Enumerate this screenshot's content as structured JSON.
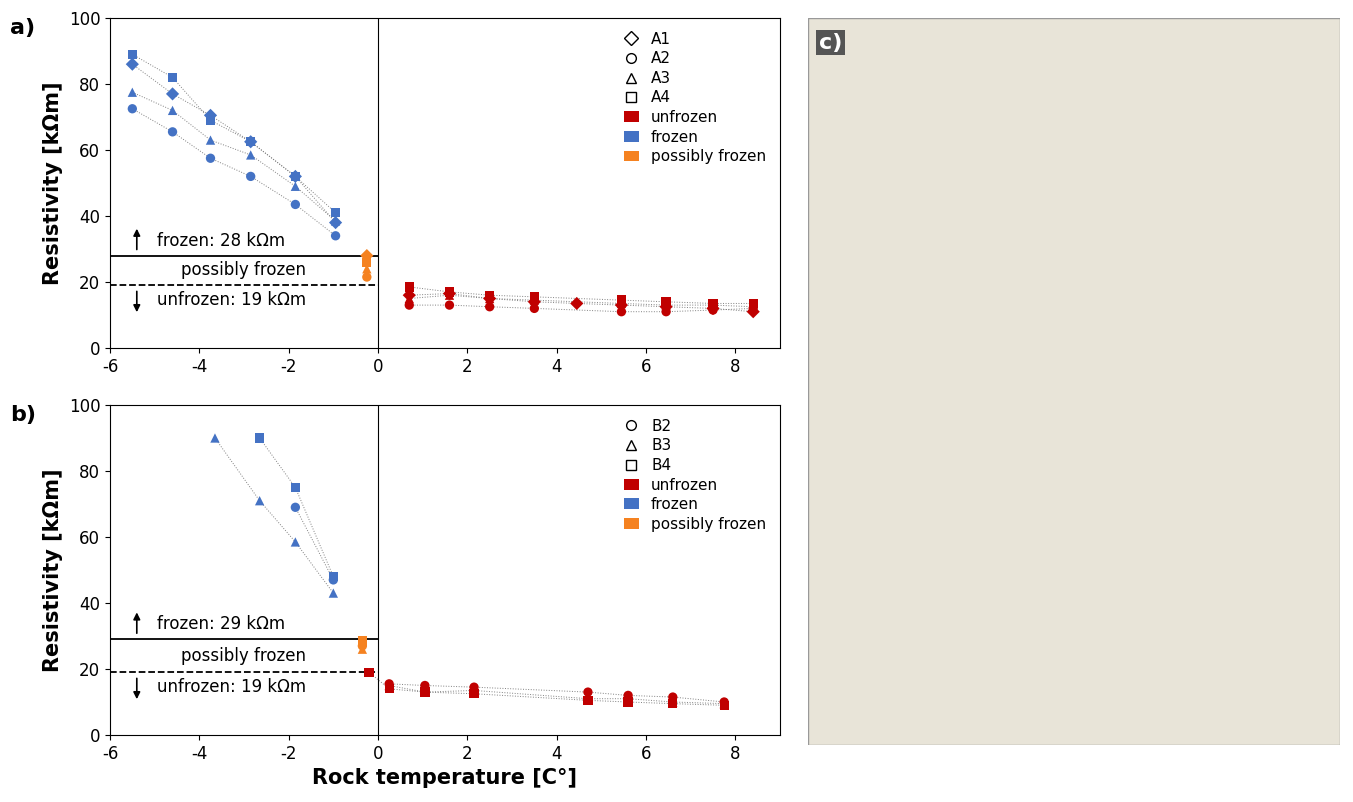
{
  "chart_data": [
    {
      "type": "scatter",
      "panel_label": "a)",
      "y_label": "Resistivity [kΩm]",
      "xlim": [
        -6,
        9
      ],
      "xticks": [
        -6,
        -4,
        -2,
        0,
        2,
        4,
        6,
        8
      ],
      "ylim": [
        0,
        100
      ],
      "yticks": [
        0,
        20,
        40,
        60,
        80,
        100
      ],
      "legend": "upper right",
      "vline": 0,
      "frozen_threshold": {
        "value": 28,
        "label": "frozen: 28 kΩm"
      },
      "unfrozen_threshold": {
        "value": 19,
        "label": "unfrozen: 19 kΩm"
      },
      "band_label": "possibly frozen",
      "states": [
        {
          "name": "unfrozen",
          "color": "#c00000"
        },
        {
          "name": "frozen",
          "color": "#4472c4"
        },
        {
          "name": "possibly frozen",
          "color": "#f58220"
        }
      ],
      "series": [
        {
          "name": "A1",
          "marker": "diamond",
          "x": [
            -5.5,
            -4.6,
            -3.75,
            -2.85,
            -1.85,
            -0.95,
            -0.25,
            0.7,
            1.6,
            2.5,
            3.5,
            4.45,
            5.45,
            6.45,
            7.5,
            8.4
          ],
          "values": [
            86,
            77,
            70.5,
            62.5,
            52,
            38,
            28,
            16,
            16.5,
            15,
            14,
            13.5,
            13,
            12.5,
            12,
            11
          ],
          "colors": [
            "#4472c4",
            "#4472c4",
            "#4472c4",
            "#4472c4",
            "#4472c4",
            "#4472c4",
            "#f58220",
            "#c00000",
            "#c00000",
            "#c00000",
            "#c00000",
            "#c00000",
            "#c00000",
            "#c00000",
            "#c00000",
            "#c00000"
          ]
        },
        {
          "name": "A2",
          "marker": "circle",
          "x": [
            -5.5,
            -4.6,
            -3.75,
            -2.85,
            -1.85,
            -0.95,
            -0.25,
            0.7,
            1.6,
            2.5,
            3.5,
            5.45,
            6.45,
            7.5,
            8.4
          ],
          "values": [
            72.5,
            65.5,
            57.5,
            52,
            43.5,
            34,
            21.5,
            13,
            13,
            12.5,
            12,
            11,
            11,
            11.5,
            12
          ],
          "colors": [
            "#4472c4",
            "#4472c4",
            "#4472c4",
            "#4472c4",
            "#4472c4",
            "#4472c4",
            "#f58220",
            "#c00000",
            "#c00000",
            "#c00000",
            "#c00000",
            "#c00000",
            "#c00000",
            "#c00000",
            "#c00000"
          ]
        },
        {
          "name": "A3",
          "marker": "triangle",
          "x": [
            -5.5,
            -4.6,
            -3.75,
            -2.85,
            -1.85,
            -0.95,
            -0.25,
            0.7,
            1.6,
            2.5,
            3.5,
            5.45,
            6.45,
            7.5,
            8.4
          ],
          "values": [
            77.5,
            72,
            63,
            58.5,
            49,
            38.5,
            24,
            15,
            16,
            15,
            14.5,
            13.5,
            13,
            13,
            12.5
          ],
          "colors": [
            "#4472c4",
            "#4472c4",
            "#4472c4",
            "#4472c4",
            "#4472c4",
            "#4472c4",
            "#f58220",
            "#c00000",
            "#c00000",
            "#c00000",
            "#c00000",
            "#c00000",
            "#c00000",
            "#c00000",
            "#c00000"
          ]
        },
        {
          "name": "A4",
          "marker": "square",
          "x": [
            -5.5,
            -4.6,
            -3.75,
            -2.85,
            -1.85,
            -0.95,
            -0.25,
            0.7,
            1.6,
            2.5,
            3.5,
            5.45,
            6.45,
            7.5,
            8.4
          ],
          "values": [
            89,
            82,
            69,
            62.5,
            52,
            41,
            26,
            18.5,
            17,
            16,
            15.5,
            14.5,
            14,
            13.5,
            13.5
          ],
          "colors": [
            "#4472c4",
            "#4472c4",
            "#4472c4",
            "#4472c4",
            "#4472c4",
            "#4472c4",
            "#f58220",
            "#c00000",
            "#c00000",
            "#c00000",
            "#c00000",
            "#c00000",
            "#c00000",
            "#c00000",
            "#c00000"
          ]
        }
      ]
    },
    {
      "type": "scatter",
      "panel_label": "b)",
      "y_label": "Resistivity [kΩm]",
      "x_label": "Rock temperature [C°]",
      "xlim": [
        -6,
        9
      ],
      "xticks": [
        -6,
        -4,
        -2,
        0,
        2,
        4,
        6,
        8
      ],
      "ylim": [
        0,
        100
      ],
      "yticks": [
        0,
        20,
        40,
        60,
        80,
        100
      ],
      "legend": "upper right",
      "vline": 0,
      "frozen_threshold": {
        "value": 29,
        "label": "frozen: 29 kΩm"
      },
      "unfrozen_threshold": {
        "value": 19,
        "label": "unfrozen: 19 kΩm"
      },
      "band_label": "possibly frozen",
      "states": [
        {
          "name": "unfrozen",
          "color": "#c00000"
        },
        {
          "name": "frozen",
          "color": "#4472c4"
        },
        {
          "name": "possibly frozen",
          "color": "#f58220"
        }
      ],
      "series": [
        {
          "name": "B2",
          "marker": "circle",
          "x": [
            -1.85,
            -1.0,
            -0.35,
            0.25,
            1.05,
            2.15,
            4.7,
            5.6,
            6.6,
            7.75
          ],
          "values": [
            69,
            47,
            27,
            15.5,
            15,
            14.5,
            13,
            12,
            11.5,
            10
          ],
          "colors": [
            "#4472c4",
            "#4472c4",
            "#f58220",
            "#c00000",
            "#c00000",
            "#c00000",
            "#c00000",
            "#c00000",
            "#c00000",
            "#c00000"
          ]
        },
        {
          "name": "B3",
          "marker": "triangle",
          "x": [
            -3.65,
            -2.65,
            -1.85,
            -1.0,
            -0.35,
            0.25,
            1.05,
            2.15,
            4.7,
            5.6,
            6.6,
            7.75
          ],
          "values": [
            90,
            71,
            58.5,
            43,
            26,
            15,
            13,
            13.5,
            11,
            11,
            10,
            9.5
          ],
          "colors": [
            "#4472c4",
            "#4472c4",
            "#4472c4",
            "#4472c4",
            "#f58220",
            "#c00000",
            "#c00000",
            "#c00000",
            "#c00000",
            "#c00000",
            "#c00000",
            "#c00000"
          ]
        },
        {
          "name": "B4",
          "marker": "square",
          "x": [
            -2.65,
            -1.85,
            -1.0,
            -0.35,
            -0.2,
            0.25,
            1.05,
            2.15,
            4.7,
            5.6,
            6.6,
            7.75
          ],
          "values": [
            90,
            75,
            48,
            28.5,
            19,
            14,
            13,
            12.5,
            10.5,
            10,
            9.5,
            9
          ],
          "colors": [
            "#4472c4",
            "#4472c4",
            "#4472c4",
            "#f58220",
            "#c00000",
            "#c00000",
            "#c00000",
            "#c00000",
            "#c00000",
            "#c00000",
            "#c00000",
            "#c00000"
          ]
        }
      ]
    }
  ],
  "photo": {
    "panel_label": "c)"
  }
}
